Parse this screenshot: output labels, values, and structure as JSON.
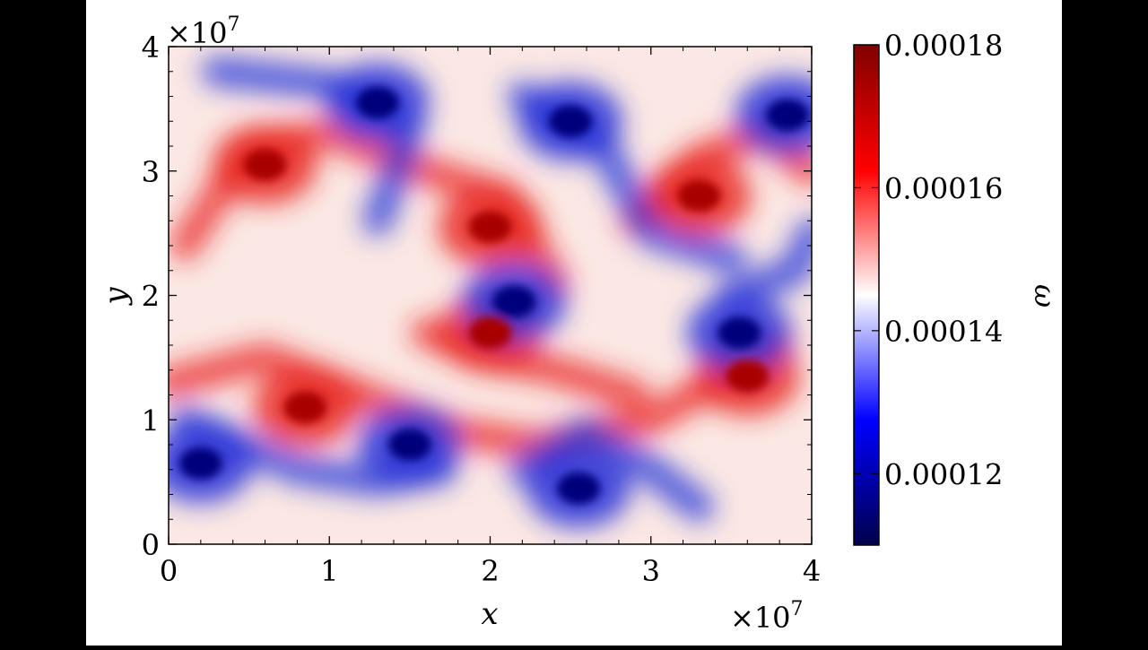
{
  "chart_data": {
    "type": "heatmap",
    "title": "",
    "xlabel": "x",
    "ylabel": "y",
    "xlim": [
      0,
      4
    ],
    "ylim": [
      0,
      4
    ],
    "x_multiplier": "×10",
    "x_multiplier_exp": "7",
    "y_multiplier": "×10",
    "y_multiplier_exp": "7",
    "x_ticks": [
      0,
      1,
      2,
      3,
      4
    ],
    "y_ticks": [
      0,
      1,
      2,
      3,
      4
    ],
    "x_tick_labels": [
      "0",
      "1",
      "2",
      "3",
      "4"
    ],
    "y_tick_labels": [
      "0",
      "1",
      "2",
      "3",
      "4"
    ],
    "colorbar": {
      "label": "ω",
      "range": [
        0.00011,
        0.00018
      ],
      "ticks": [
        0.00012,
        0.00014,
        0.00016,
        0.00018
      ],
      "tick_labels": [
        "0.00012",
        "0.00014",
        "0.00016",
        "0.00018"
      ],
      "colormap": "seismic",
      "colors": [
        "#00004c",
        "#0000ff",
        "#ffffff",
        "#ff0000",
        "#800000"
      ]
    },
    "vortices": [
      {
        "x": 0.6,
        "y": 3.05,
        "sign": "positive"
      },
      {
        "x": 2.0,
        "y": 2.55,
        "sign": "positive"
      },
      {
        "x": 3.3,
        "y": 2.8,
        "sign": "positive"
      },
      {
        "x": 0.85,
        "y": 1.1,
        "sign": "positive"
      },
      {
        "x": 3.6,
        "y": 1.35,
        "sign": "positive"
      },
      {
        "x": 2.0,
        "y": 1.7,
        "sign": "positive"
      },
      {
        "x": 1.3,
        "y": 3.55,
        "sign": "negative"
      },
      {
        "x": 2.5,
        "y": 3.4,
        "sign": "negative"
      },
      {
        "x": 3.85,
        "y": 3.45,
        "sign": "negative"
      },
      {
        "x": 2.15,
        "y": 1.95,
        "sign": "negative"
      },
      {
        "x": 3.55,
        "y": 1.7,
        "sign": "negative"
      },
      {
        "x": 1.5,
        "y": 0.8,
        "sign": "negative"
      },
      {
        "x": 0.2,
        "y": 0.65,
        "sign": "negative"
      },
      {
        "x": 2.55,
        "y": 0.45,
        "sign": "negative"
      }
    ]
  }
}
